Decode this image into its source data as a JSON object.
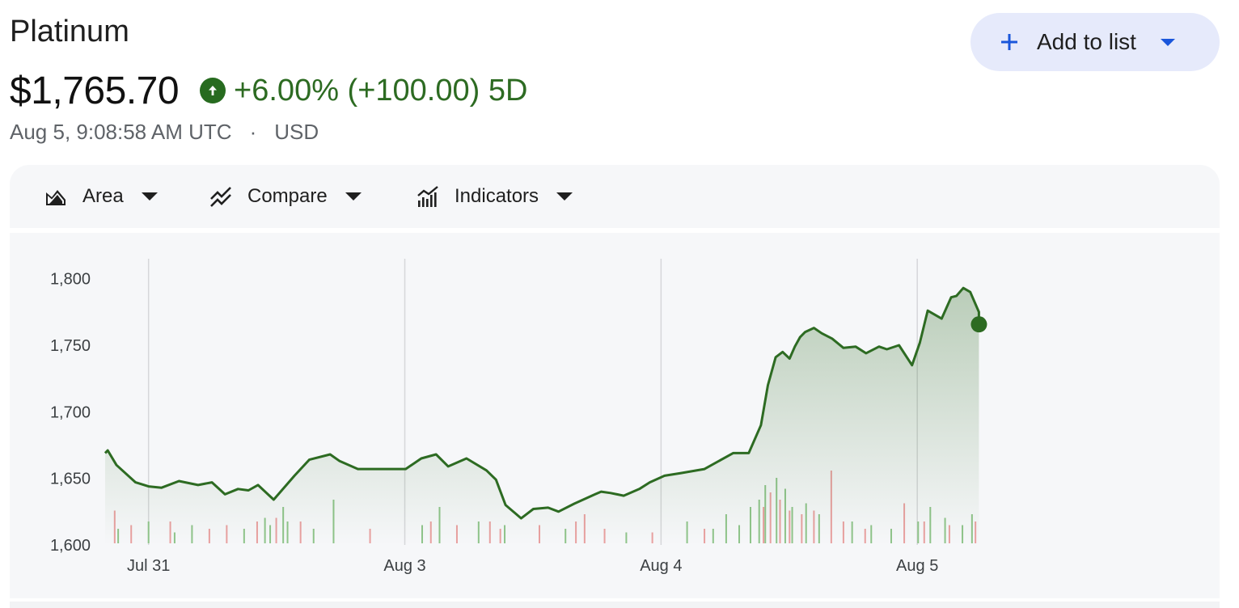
{
  "header": {
    "title": "Platinum",
    "price": "$1,765.70",
    "change": "+6.00% (+100.00) 5D",
    "timestamp": "Aug 5, 9:08:58 AM UTC",
    "separator": "·",
    "currency": "USD"
  },
  "actions": {
    "add_to_list": "Add to list"
  },
  "toolbar": {
    "items": [
      {
        "label": "Area",
        "icon": "area-chart-icon"
      },
      {
        "label": "Compare",
        "icon": "compare-icon"
      },
      {
        "label": "Indicators",
        "icon": "indicators-icon"
      }
    ]
  },
  "colors": {
    "line": "#2d6b22",
    "positive": "#276b1f",
    "accent": "#1a56db",
    "volume_up": "#8fc48a",
    "volume_down": "#e9a0a0"
  },
  "chart_data": {
    "type": "area",
    "xlabel": "",
    "ylabel": "",
    "ylim": [
      1600,
      1815
    ],
    "yticks": [
      "1,800",
      "1,750",
      "1,700",
      "1,650",
      "1,600"
    ],
    "ytick_values": [
      1800,
      1750,
      1700,
      1650,
      1600
    ],
    "xticks": [
      "Jul 31",
      "Aug 3",
      "Aug 4",
      "Aug 5"
    ],
    "grid_vertical": true,
    "legend": "none",
    "series": [
      {
        "x": [
          0,
          0.3,
          1.3,
          3.5,
          5,
          6.5,
          8.5,
          10.7,
          12.3,
          13.8,
          15.3,
          16.5,
          17.6,
          19.4,
          21.8,
          23.5,
          25.9,
          27,
          29.1,
          30.7,
          31.7,
          33.2,
          34.6,
          36.4,
          38.1,
          39.5,
          41.6,
          43.9,
          45,
          46.1,
          47.9,
          49.3,
          51,
          52.2,
          54,
          56.4,
          57.1,
          58.2,
          59.7,
          61.5,
          62.7,
          64.4,
          66.3,
          69,
          72.3,
          74.1,
          75.5,
          76.3,
          77.2,
          78,
          78.8,
          79.4,
          80,
          80.6,
          81.6,
          82.5,
          83.7,
          85,
          86.4,
          87.6,
          89.1,
          90,
          91.4,
          92.9,
          93.8,
          94.7,
          96.3,
          97.4,
          98,
          98.8,
          99.6,
          100.2,
          100.6
        ],
        "values": [
          1669,
          1671,
          1660,
          1647,
          1644,
          1643,
          1648,
          1645,
          1647,
          1638,
          1642,
          1641,
          1645,
          1634,
          1652,
          1664,
          1668,
          1663,
          1657,
          1657,
          1657,
          1657,
          1657,
          1665,
          1668,
          1659,
          1665,
          1656,
          1649,
          1630,
          1620,
          1627,
          1628,
          1625,
          1631,
          1638,
          1640,
          1639,
          1637,
          1642,
          1647,
          1652,
          1654,
          1657,
          1669,
          1669,
          1690,
          1720,
          1741,
          1745,
          1740,
          1749,
          1756,
          1760,
          1763,
          1759,
          1755,
          1748,
          1749,
          1744,
          1749,
          1747,
          1750,
          1735,
          1752,
          1776,
          1770,
          1786,
          1787,
          1793,
          1790,
          1781,
          1775
        ]
      }
    ],
    "last_value": 1765.7,
    "volume": {
      "up": [
        {
          "x": 1.5,
          "v": 0.2
        },
        {
          "x": 5,
          "v": 0.3
        },
        {
          "x": 8,
          "v": 0.15
        },
        {
          "x": 10,
          "v": 0.25
        },
        {
          "x": 16,
          "v": 0.2
        },
        {
          "x": 18.4,
          "v": 0.35
        },
        {
          "x": 19,
          "v": 0.25
        },
        {
          "x": 20.5,
          "v": 0.5
        },
        {
          "x": 21,
          "v": 0.3
        },
        {
          "x": 24,
          "v": 0.2
        },
        {
          "x": 26.3,
          "v": 0.6
        },
        {
          "x": 36.5,
          "v": 0.25
        },
        {
          "x": 38.5,
          "v": 0.5
        },
        {
          "x": 43,
          "v": 0.3
        },
        {
          "x": 46,
          "v": 0.25
        },
        {
          "x": 53,
          "v": 0.2
        },
        {
          "x": 60,
          "v": 0.15
        },
        {
          "x": 67,
          "v": 0.3
        },
        {
          "x": 70,
          "v": 0.2
        },
        {
          "x": 71.5,
          "v": 0.4
        },
        {
          "x": 73,
          "v": 0.25
        },
        {
          "x": 74.3,
          "v": 0.5
        },
        {
          "x": 75.3,
          "v": 0.6
        },
        {
          "x": 76,
          "v": 0.8
        },
        {
          "x": 77.3,
          "v": 0.9
        },
        {
          "x": 78.3,
          "v": 0.75
        },
        {
          "x": 79.1,
          "v": 0.5
        },
        {
          "x": 80.7,
          "v": 0.55
        },
        {
          "x": 82.2,
          "v": 0.4
        },
        {
          "x": 86,
          "v": 0.3
        },
        {
          "x": 88.2,
          "v": 0.25
        },
        {
          "x": 90.5,
          "v": 0.2
        },
        {
          "x": 93.6,
          "v": 0.3
        },
        {
          "x": 95,
          "v": 0.5
        },
        {
          "x": 96.7,
          "v": 0.35
        },
        {
          "x": 98.7,
          "v": 0.25
        },
        {
          "x": 99.8,
          "v": 0.4
        }
      ],
      "down": [
        {
          "x": 1.1,
          "v": 0.45
        },
        {
          "x": 3,
          "v": 0.25
        },
        {
          "x": 7.5,
          "v": 0.3
        },
        {
          "x": 12,
          "v": 0.2
        },
        {
          "x": 14,
          "v": 0.25
        },
        {
          "x": 17.5,
          "v": 0.3
        },
        {
          "x": 19.7,
          "v": 0.35
        },
        {
          "x": 22.5,
          "v": 0.3
        },
        {
          "x": 30.5,
          "v": 0.2
        },
        {
          "x": 37.5,
          "v": 0.3
        },
        {
          "x": 40.5,
          "v": 0.25
        },
        {
          "x": 44.3,
          "v": 0.3
        },
        {
          "x": 45.5,
          "v": 0.2
        },
        {
          "x": 50,
          "v": 0.25
        },
        {
          "x": 54.2,
          "v": 0.3
        },
        {
          "x": 55.2,
          "v": 0.4
        },
        {
          "x": 57.5,
          "v": 0.2
        },
        {
          "x": 63,
          "v": 0.15
        },
        {
          "x": 69,
          "v": 0.2
        },
        {
          "x": 75.8,
          "v": 0.5
        },
        {
          "x": 76.6,
          "v": 0.7
        },
        {
          "x": 77.7,
          "v": 0.6
        },
        {
          "x": 78.8,
          "v": 0.45
        },
        {
          "x": 80.2,
          "v": 0.4
        },
        {
          "x": 81.6,
          "v": 0.45
        },
        {
          "x": 83.6,
          "v": 1.0
        },
        {
          "x": 85,
          "v": 0.3
        },
        {
          "x": 87.5,
          "v": 0.2
        },
        {
          "x": 92,
          "v": 0.55
        },
        {
          "x": 94.3,
          "v": 0.3
        },
        {
          "x": 97.2,
          "v": 0.25
        },
        {
          "x": 100.2,
          "v": 0.3
        }
      ]
    }
  }
}
